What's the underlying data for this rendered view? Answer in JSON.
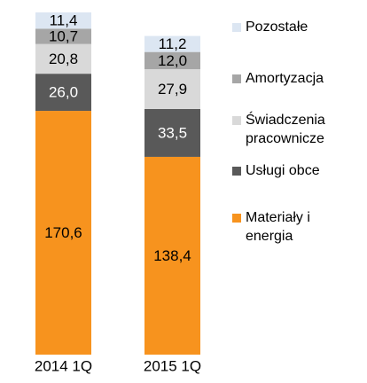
{
  "chart_data": {
    "type": "bar",
    "stacked": true,
    "categories": [
      "2014 1Q",
      "2015 1Q"
    ],
    "series": [
      {
        "name": "Materiały i energia",
        "color": "#f7931e",
        "values": [
          170.6,
          138.4
        ],
        "value_labels": [
          "170,6",
          "138,4"
        ]
      },
      {
        "name": "Usługi obce",
        "color": "#595959",
        "values": [
          26.0,
          33.5
        ],
        "value_labels": [
          "26,0",
          "33,5"
        ]
      },
      {
        "name": "Świadczenia pracownicze",
        "color": "#d9d9d9",
        "values": [
          20.8,
          27.9
        ],
        "value_labels": [
          "20,8",
          "27,9"
        ]
      },
      {
        "name": "Amortyzacja",
        "color": "#a6a6a6",
        "values": [
          10.7,
          12.0
        ],
        "value_labels": [
          "10,7",
          "12,0"
        ]
      },
      {
        "name": "Pozostałe",
        "color": "#dce6f2",
        "values": [
          11.4,
          11.2
        ],
        "value_labels": [
          "11,4",
          "11,2"
        ]
      }
    ]
  }
}
